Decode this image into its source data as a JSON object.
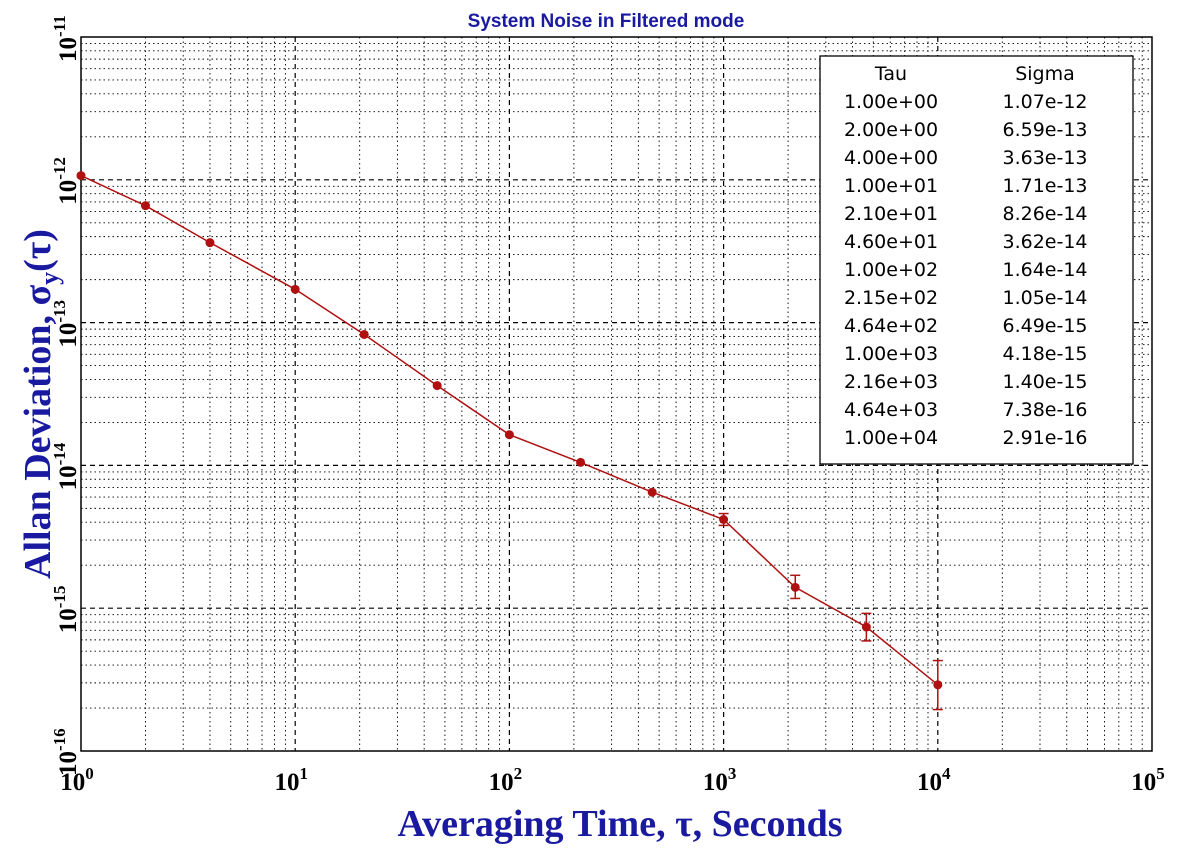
{
  "chart_data": {
    "type": "line",
    "title": "System Noise in Filtered mode",
    "xlabel": "Averaging Time, τ, Seconds",
    "ylabel": {
      "main": "Allan Deviation, σ",
      "sub": "y",
      "suffix": "(τ)"
    },
    "x_scale": "log",
    "y_scale": "log",
    "xlim": [
      1,
      100000
    ],
    "ylim": [
      1e-16,
      1e-11
    ],
    "x_ticks": [
      {
        "base": "10",
        "exp": "0",
        "value": 1
      },
      {
        "base": "10",
        "exp": "1",
        "value": 10
      },
      {
        "base": "10",
        "exp": "2",
        "value": 100
      },
      {
        "base": "10",
        "exp": "3",
        "value": 1000
      },
      {
        "base": "10",
        "exp": "4",
        "value": 10000
      },
      {
        "base": "10",
        "exp": "5",
        "value": 100000
      }
    ],
    "y_ticks": [
      {
        "base": "10",
        "exp": "-16",
        "value": 1e-16
      },
      {
        "base": "10",
        "exp": "-15",
        "value": 1e-15
      },
      {
        "base": "10",
        "exp": "-14",
        "value": 1e-14
      },
      {
        "base": "10",
        "exp": "-13",
        "value": 1e-13
      },
      {
        "base": "10",
        "exp": "-12",
        "value": 1e-12
      },
      {
        "base": "10",
        "exp": "-11",
        "value": 1e-11
      }
    ],
    "grid": true,
    "series": [
      {
        "color": "#b01010",
        "x": [
          1,
          2,
          4,
          10,
          21,
          46,
          100,
          215,
          464,
          1000,
          2160,
          4640,
          10000
        ],
        "y": [
          1.07e-12,
          6.59e-13,
          3.63e-13,
          1.71e-13,
          8.26e-14,
          3.62e-14,
          1.64e-14,
          1.05e-14,
          6.49e-15,
          4.18e-15,
          1.4e-15,
          7.38e-16,
          2.91e-16
        ],
        "err_low": [
          1.07e-12,
          6.59e-13,
          3.63e-13,
          1.71e-13,
          8.26e-14,
          3.62e-14,
          1.64e-14,
          1.05e-14,
          6.49e-15,
          3.8e-15,
          1.17e-15,
          5.9e-16,
          1.95e-16
        ],
        "err_high": [
          1.07e-12,
          6.59e-13,
          3.63e-13,
          1.71e-13,
          8.26e-14,
          3.62e-14,
          1.64e-14,
          1.05e-14,
          6.49e-15,
          4.6e-15,
          1.7e-15,
          9.2e-16,
          4.3e-16
        ]
      }
    ],
    "table": {
      "position": "top-right",
      "headers": [
        "Tau",
        "Sigma"
      ],
      "rows": [
        [
          "1.00e+00",
          "1.07e-12"
        ],
        [
          "2.00e+00",
          "6.59e-13"
        ],
        [
          "4.00e+00",
          "3.63e-13"
        ],
        [
          "1.00e+01",
          "1.71e-13"
        ],
        [
          "2.10e+01",
          "8.26e-14"
        ],
        [
          "4.60e+01",
          "3.62e-14"
        ],
        [
          "1.00e+02",
          "1.64e-14"
        ],
        [
          "2.15e+02",
          "1.05e-14"
        ],
        [
          "4.64e+02",
          "6.49e-15"
        ],
        [
          "1.00e+03",
          "4.18e-15"
        ],
        [
          "2.16e+03",
          "1.40e-15"
        ],
        [
          "4.64e+03",
          "7.38e-16"
        ],
        [
          "1.00e+04",
          "2.91e-16"
        ]
      ]
    }
  }
}
